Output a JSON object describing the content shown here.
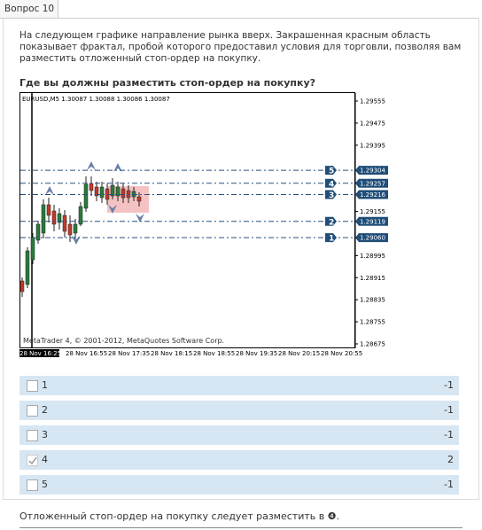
{
  "header": {
    "title": "Вопрос 10"
  },
  "question": {
    "text": "На следующем графике направление рынка вверх. Закрашенная красным область показывает фрактал, пробой которого предоставил условия для торговли, позволяя вам разместить отложенный стоп-ордер на покупку.",
    "prompt": "Где вы должны разместить стоп-ордер на покупку?"
  },
  "chart": {
    "symbol_info": "EURUSD,M5  1.30087 1.30088 1.30086 1.30087",
    "price_ticks": [
      "1.29555",
      "1.29475",
      "1.29395",
      "1.29155",
      "1.28995",
      "1.28915",
      "1.28835",
      "1.28755",
      "1.28675"
    ],
    "levels": [
      {
        "number": "5",
        "price": "1.29304"
      },
      {
        "number": "4",
        "price": "1.29257"
      },
      {
        "number": "3",
        "price": "1.29216"
      },
      {
        "number": "2",
        "price": "1.29119"
      },
      {
        "number": "1",
        "price": "1.29060"
      }
    ],
    "time_ticks": [
      "28 Nov 16:25",
      "28 Nov 16:55",
      "28 Nov 17:35",
      "28 Nov 18:15",
      "28 Nov 18:55",
      "28 Nov 19:35",
      "28 Nov 20:15",
      "28 Nov 20:55"
    ],
    "caption": "MetaTrader 4, © 2001-2012, MetaQuotes Software Corp."
  },
  "options": [
    {
      "label": "1",
      "score": "-1",
      "checked": false
    },
    {
      "label": "2",
      "score": "-1",
      "checked": false
    },
    {
      "label": "3",
      "score": "-1",
      "checked": false
    },
    {
      "label": "4",
      "score": "2",
      "checked": true
    },
    {
      "label": "5",
      "score": "-1",
      "checked": false
    }
  ],
  "footer": {
    "text": "Отложенный стоп-ордер на покупку следует разместить в ❹."
  }
}
